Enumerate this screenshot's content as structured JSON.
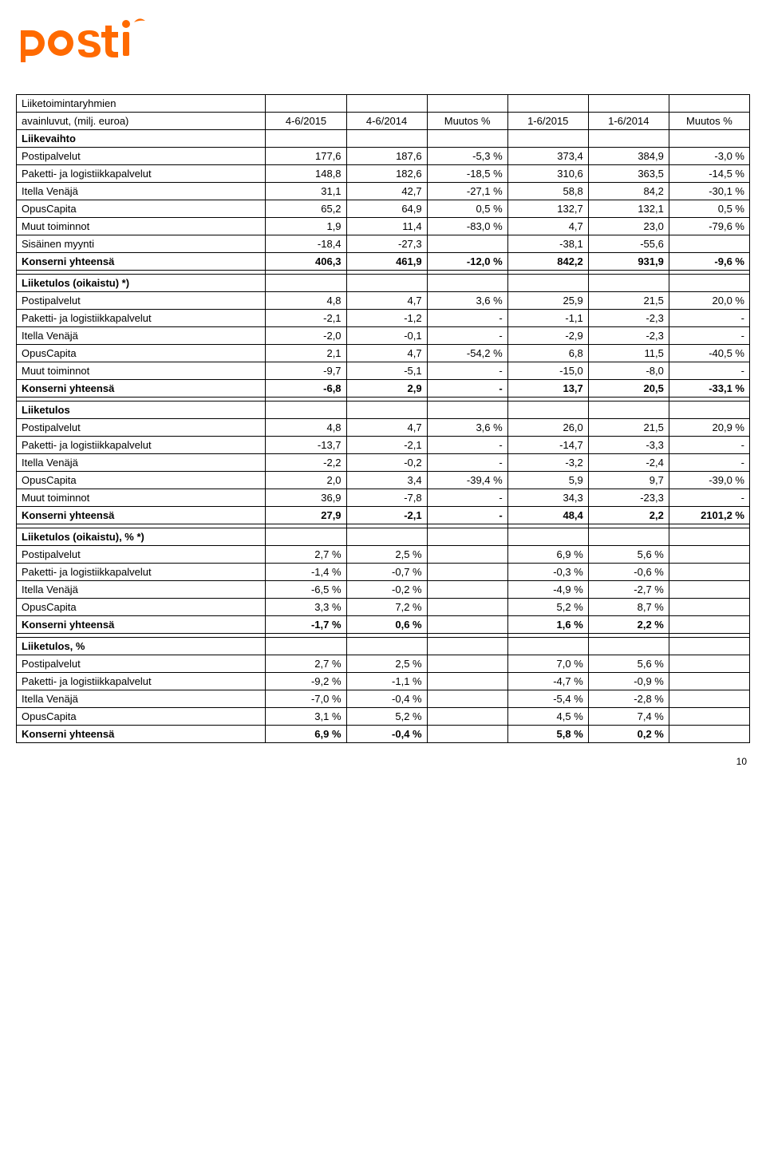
{
  "brand": {
    "name": "posti",
    "logo_color": "#ff6a00"
  },
  "page_number": "10",
  "table": {
    "header": {
      "label_line1": "Liiketoimintaryhmien",
      "label_line2": "avainluvut, (milj. euroa)",
      "cols": [
        "4-6/2015",
        "4-6/2014",
        "Muutos %",
        "1-6/2015",
        "1-6/2014",
        "Muutos %"
      ]
    },
    "sections": [
      {
        "title": "Liikevaihto",
        "rows": [
          {
            "label": "Postipalvelut",
            "v": [
              "177,6",
              "187,6",
              "-5,3 %",
              "373,4",
              "384,9",
              "-3,0 %"
            ]
          },
          {
            "label": "Paketti- ja logistiikkapalvelut",
            "v": [
              "148,8",
              "182,6",
              "-18,5 %",
              "310,6",
              "363,5",
              "-14,5 %"
            ]
          },
          {
            "label": "Itella Venäjä",
            "v": [
              "31,1",
              "42,7",
              "-27,1 %",
              "58,8",
              "84,2",
              "-30,1 %"
            ]
          },
          {
            "label": "OpusCapita",
            "v": [
              "65,2",
              "64,9",
              "0,5 %",
              "132,7",
              "132,1",
              "0,5 %"
            ]
          },
          {
            "label": "Muut toiminnot",
            "v": [
              "1,9",
              "11,4",
              "-83,0 %",
              "4,7",
              "23,0",
              "-79,6 %"
            ]
          },
          {
            "label": "Sisäinen myynti",
            "v": [
              "-18,4",
              "-27,3",
              "",
              "-38,1",
              "-55,6",
              ""
            ]
          },
          {
            "label": "Konserni yhteensä",
            "v": [
              "406,3",
              "461,9",
              "-12,0 %",
              "842,2",
              "931,9",
              "-9,6 %"
            ],
            "bold": true
          }
        ]
      },
      {
        "title": "Liiketulos (oikaistu) *)",
        "rows": [
          {
            "label": "Postipalvelut",
            "v": [
              "4,8",
              "4,7",
              "3,6 %",
              "25,9",
              "21,5",
              "20,0 %"
            ]
          },
          {
            "label": "Paketti- ja logistiikkapalvelut",
            "v": [
              "-2,1",
              "-1,2",
              "-",
              "-1,1",
              "-2,3",
              "-"
            ]
          },
          {
            "label": "Itella Venäjä",
            "v": [
              "-2,0",
              "-0,1",
              "-",
              "-2,9",
              "-2,3",
              "-"
            ]
          },
          {
            "label": "OpusCapita",
            "v": [
              "2,1",
              "4,7",
              "-54,2 %",
              "6,8",
              "11,5",
              "-40,5 %"
            ]
          },
          {
            "label": "Muut toiminnot",
            "v": [
              "-9,7",
              "-5,1",
              "-",
              "-15,0",
              "-8,0",
              "-"
            ]
          },
          {
            "label": "Konserni yhteensä",
            "v": [
              "-6,8",
              "2,9",
              "-",
              "13,7",
              "20,5",
              "-33,1 %"
            ],
            "bold": true
          }
        ]
      },
      {
        "title": "Liiketulos",
        "rows": [
          {
            "label": "Postipalvelut",
            "v": [
              "4,8",
              "4,7",
              "3,6 %",
              "26,0",
              "21,5",
              "20,9 %"
            ]
          },
          {
            "label": "Paketti- ja logistiikkapalvelut",
            "v": [
              "-13,7",
              "-2,1",
              "-",
              "-14,7",
              "-3,3",
              "-"
            ]
          },
          {
            "label": "Itella Venäjä",
            "v": [
              "-2,2",
              "-0,2",
              "-",
              "-3,2",
              "-2,4",
              "-"
            ]
          },
          {
            "label": "OpusCapita",
            "v": [
              "2,0",
              "3,4",
              "-39,4 %",
              "5,9",
              "9,7",
              "-39,0 %"
            ]
          },
          {
            "label": "Muut toiminnot",
            "v": [
              "36,9",
              "-7,8",
              "-",
              "34,3",
              "-23,3",
              "-"
            ]
          },
          {
            "label": "Konserni yhteensä",
            "v": [
              "27,9",
              "-2,1",
              "-",
              "48,4",
              "2,2",
              "2101,2 %"
            ],
            "bold": true
          }
        ]
      },
      {
        "title": "Liiketulos (oikaistu), % *)",
        "rows": [
          {
            "label": "Postipalvelut",
            "v": [
              "2,7 %",
              "2,5 %",
              "",
              "6,9 %",
              "5,6 %",
              ""
            ]
          },
          {
            "label": "Paketti- ja logistiikkapalvelut",
            "v": [
              "-1,4 %",
              "-0,7 %",
              "",
              "-0,3 %",
              "-0,6 %",
              ""
            ]
          },
          {
            "label": "Itella Venäjä",
            "v": [
              "-6,5 %",
              "-0,2 %",
              "",
              "-4,9 %",
              "-2,7 %",
              ""
            ]
          },
          {
            "label": "OpusCapita",
            "v": [
              "3,3 %",
              "7,2 %",
              "",
              "5,2 %",
              "8,7 %",
              ""
            ]
          },
          {
            "label": "Konserni yhteensä",
            "v": [
              "-1,7 %",
              "0,6 %",
              "",
              "1,6 %",
              "2,2 %",
              ""
            ],
            "bold": true
          }
        ]
      },
      {
        "title": "Liiketulos, %",
        "rows": [
          {
            "label": "Postipalvelut",
            "v": [
              "2,7 %",
              "2,5 %",
              "",
              "7,0 %",
              "5,6 %",
              ""
            ]
          },
          {
            "label": "Paketti- ja logistiikkapalvelut",
            "v": [
              "-9,2 %",
              "-1,1 %",
              "",
              "-4,7 %",
              "-0,9 %",
              ""
            ]
          },
          {
            "label": "Itella Venäjä",
            "v": [
              "-7,0 %",
              "-0,4 %",
              "",
              "-5,4 %",
              "-2,8 %",
              ""
            ]
          },
          {
            "label": "OpusCapita",
            "v": [
              "3,1 %",
              "5,2 %",
              "",
              "4,5 %",
              "7,4 %",
              ""
            ]
          },
          {
            "label": "Konserni yhteensä",
            "v": [
              "6,9 %",
              "-0,4 %",
              "",
              "5,8 %",
              "0,2 %",
              ""
            ],
            "bold": true
          }
        ]
      }
    ]
  }
}
